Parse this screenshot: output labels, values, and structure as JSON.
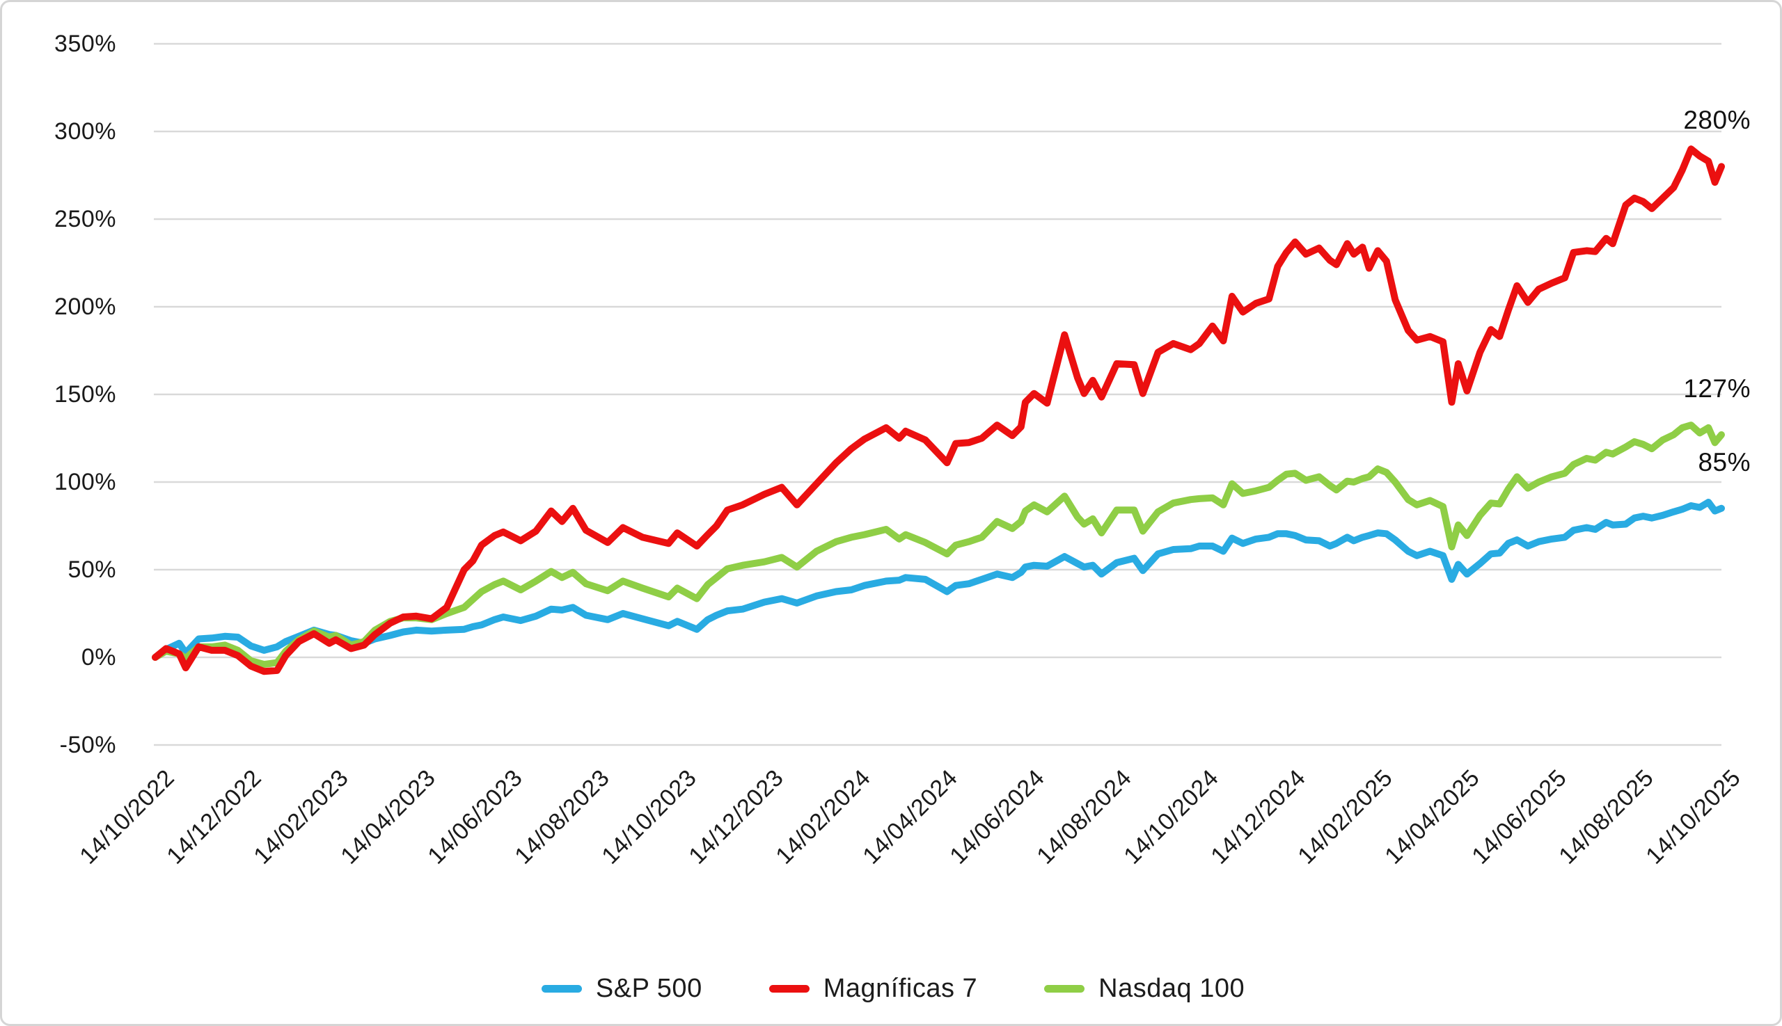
{
  "chart_data": {
    "type": "line",
    "title": "",
    "description": "Cumulative return since 14/10/2022, weekly, three equity series",
    "y_axis": {
      "ticks": [
        350,
        300,
        250,
        200,
        150,
        100,
        50,
        0,
        -50
      ],
      "suffix": "%",
      "range": [
        -50,
        350
      ]
    },
    "x_axis": {
      "tick_labels": [
        "14/10/2022",
        "14/12/2022",
        "14/02/2023",
        "14/04/2023",
        "14/06/2023",
        "14/08/2023",
        "14/10/2023",
        "14/12/2023",
        "14/02/2024",
        "14/04/2024",
        "14/06/2024",
        "14/08/2024",
        "14/10/2024",
        "14/12/2024",
        "14/02/2025",
        "14/04/2025",
        "14/06/2025",
        "14/08/2025",
        "14/10/2025"
      ],
      "tick_interval_months": 2,
      "range_months": [
        0,
        36
      ]
    },
    "grid": "horizontal",
    "legend_position": "bottom",
    "gridline_color": "#d9d9d9",
    "x_months": [
      0,
      0.25,
      0.55,
      0.7,
      1,
      1.3,
      1.6,
      1.9,
      2.2,
      2.5,
      2.8,
      3,
      3.3,
      3.65,
      4,
      4.15,
      4.5,
      4.8,
      5.05,
      5.4,
      5.7,
      6,
      6.35,
      6.7,
      7.1,
      7.3,
      7.5,
      7.8,
      8,
      8.4,
      8.75,
      9.1,
      9.35,
      9.6,
      9.9,
      10.4,
      10.75,
      11.2,
      11.8,
      12,
      12.45,
      12.7,
      12.9,
      13.15,
      13.5,
      14,
      14.4,
      14.75,
      15.2,
      15.65,
      16,
      16.3,
      16.8,
      17.1,
      17.25,
      17.7,
      18.2,
      18.4,
      18.7,
      19,
      19.35,
      19.7,
      19.9,
      20,
      20.2,
      20.5,
      20.9,
      21.2,
      21.35,
      21.55,
      21.75,
      22.1,
      22.5,
      22.7,
      23.05,
      23.4,
      23.8,
      24,
      24.3,
      24.55,
      24.75,
      25,
      25.3,
      25.6,
      25.8,
      26,
      26.2,
      26.45,
      26.75,
      27,
      27.15,
      27.4,
      27.55,
      27.75,
      27.9,
      28.1,
      28.3,
      28.5,
      28.8,
      29,
      29.3,
      29.6,
      29.8,
      29.95,
      30.15,
      30.45,
      30.7,
      30.9,
      31.1,
      31.3,
      31.55,
      31.8,
      32.1,
      32.4,
      32.6,
      32.9,
      33.1,
      33.35,
      33.5,
      33.8,
      34,
      34.2,
      34.4,
      34.65,
      34.9,
      35.1,
      35.3,
      35.5,
      35.7,
      35.85,
      36
    ],
    "series": [
      {
        "name": "S&P 500",
        "color": "#29ABE2",
        "end_label": "85%",
        "end_value": 85,
        "values": [
          0,
          4.5,
          8,
          2.5,
          10.5,
          11,
          12,
          11.5,
          6.5,
          4,
          6,
          9,
          12,
          15.5,
          13,
          12.5,
          9.5,
          8,
          10.5,
          12.5,
          14.5,
          15.5,
          15,
          15.5,
          16,
          17.5,
          18.5,
          21.5,
          23,
          21,
          23.5,
          27.5,
          27,
          28.5,
          24,
          21.5,
          25,
          22,
          18,
          20.5,
          16,
          21.5,
          24,
          26.5,
          27.5,
          31.5,
          33.5,
          31,
          35,
          37.5,
          38.5,
          41,
          43.5,
          44,
          45.5,
          44.5,
          37.5,
          41,
          42,
          44.5,
          47.5,
          45.5,
          48.5,
          51.5,
          52.5,
          52,
          57.5,
          53.5,
          51.5,
          52.5,
          47.5,
          54,
          56.5,
          49.5,
          59,
          61.5,
          62,
          63.5,
          63.5,
          60.5,
          68,
          65,
          67.5,
          68.5,
          70.5,
          70.5,
          69.5,
          67,
          66.5,
          63.5,
          65,
          68.5,
          66.5,
          68.5,
          69.5,
          71,
          70.5,
          67,
          60.5,
          58,
          60.5,
          58,
          44.5,
          53,
          47.5,
          53.5,
          59,
          59.5,
          65,
          67,
          63.5,
          66,
          67.5,
          68.5,
          72.5,
          74,
          73,
          77,
          75.5,
          76,
          79.5,
          80.5,
          79.5,
          81,
          83,
          84.5,
          86.5,
          85.5,
          88.5,
          83.5,
          85
        ]
      },
      {
        "name": "Magníficas 7",
        "color": "#EB1010",
        "end_label": "280%",
        "end_value": 280,
        "values": [
          0,
          5,
          2,
          -6,
          6,
          4,
          4,
          1,
          -5,
          -8,
          -7.5,
          1,
          9,
          13.5,
          8,
          10,
          5,
          7,
          13,
          19.5,
          23,
          23.5,
          22,
          28.5,
          50,
          55,
          64,
          69.5,
          71.5,
          66.5,
          72,
          83.5,
          77.5,
          85,
          72.5,
          65.5,
          74,
          68.5,
          65,
          71,
          63.5,
          70,
          75,
          84,
          87,
          93,
          97,
          87,
          99,
          111,
          119,
          124.5,
          131,
          125,
          129,
          124,
          111,
          122,
          122.5,
          125,
          132.5,
          126.5,
          131.5,
          145.5,
          150.5,
          145,
          184,
          159.5,
          150.5,
          158,
          148.5,
          167.5,
          167,
          150.5,
          174,
          179,
          175.5,
          179,
          189,
          180.5,
          206,
          197,
          202,
          204.5,
          223,
          231,
          237,
          230,
          233.5,
          226.5,
          224,
          236,
          230,
          234,
          222,
          232,
          226,
          204,
          186.5,
          181,
          183,
          180,
          145.5,
          167.5,
          152,
          174,
          187,
          183,
          198,
          212,
          202.5,
          210,
          213.5,
          216.5,
          231,
          232,
          231.5,
          239,
          236,
          258,
          262,
          260,
          256,
          262,
          268,
          278,
          290,
          286,
          283,
          271,
          280
        ]
      },
      {
        "name": "Nasdaq 100",
        "color": "#8FCE46",
        "end_label": "127%",
        "end_value": 127,
        "values": [
          0,
          3.5,
          2,
          -0.5,
          6,
          6,
          7,
          4,
          -2,
          -4,
          -3,
          3.5,
          10,
          15,
          11.5,
          12.5,
          7,
          9,
          15.5,
          20.5,
          22.5,
          22.5,
          21.5,
          25,
          28.5,
          33,
          37.5,
          41.5,
          43.5,
          38.5,
          43.5,
          49,
          45.5,
          48.5,
          42,
          38,
          43.5,
          39.5,
          34.5,
          39.5,
          33.5,
          41.5,
          45.5,
          50.5,
          52.5,
          54.5,
          57,
          51.5,
          60.5,
          66,
          68.5,
          70,
          73,
          67.5,
          70,
          65.5,
          59,
          64,
          66,
          68.5,
          77.5,
          73.5,
          77.5,
          83.5,
          87,
          83,
          92,
          80,
          76,
          79,
          71,
          84,
          84,
          72,
          83,
          88,
          90,
          90.5,
          91,
          87,
          99,
          93.5,
          95,
          97,
          101,
          104.5,
          105,
          101,
          103,
          98,
          95.5,
          100.5,
          100,
          102,
          103,
          107.5,
          105.5,
          100,
          90,
          87,
          89.5,
          86,
          63,
          75.5,
          69.5,
          81,
          88,
          87.5,
          96,
          103,
          96.5,
          100,
          103,
          105,
          110,
          113.5,
          112.5,
          117,
          116,
          120,
          123,
          121.5,
          119,
          124,
          127,
          131,
          132.5,
          128,
          131,
          122.5,
          127
        ]
      }
    ]
  }
}
